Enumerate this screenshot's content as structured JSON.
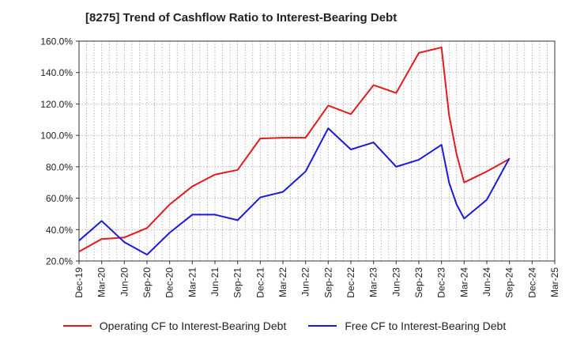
{
  "title": "[8275]  Trend of Cashflow Ratio to Interest-Bearing Debt",
  "chart_data": {
    "type": "line",
    "x": [
      "Dec-19",
      "Mar-20",
      "Jun-20",
      "Sep-20",
      "Dec-20",
      "Mar-21",
      "Jun-21",
      "Sep-21",
      "Dec-21",
      "Mar-22",
      "Jun-22",
      "Sep-22",
      "Dec-22",
      "Mar-23",
      "Jun-23",
      "Sep-23",
      "Dec-23",
      "Mar-24",
      "Jun-24",
      "Sep-24",
      "Dec-24",
      "Mar-25"
    ],
    "ylim": [
      20,
      160
    ],
    "yticks": [
      "20.0%",
      "40.0%",
      "60.0%",
      "80.0%",
      "100.0%",
      "120.0%",
      "140.0%",
      "160.0%"
    ],
    "grid": true,
    "legend_position": "bottom",
    "series": [
      {
        "name": "Operating CF to Interest-Bearing Debt",
        "color": "#e41a1c",
        "points": [
          [
            "Dec-19",
            26
          ],
          [
            "Mar-20",
            34
          ],
          [
            "Jun-20",
            35
          ],
          [
            "Sep-20",
            41
          ],
          [
            "Dec-20",
            56
          ],
          [
            "Mar-21",
            67.5
          ],
          [
            "Jun-21",
            75
          ],
          [
            "Sep-21",
            78
          ],
          [
            "Dec-21",
            98
          ],
          [
            "Mar-22",
            98.5
          ],
          [
            "Jun-22",
            98.5
          ],
          [
            "Sep-22",
            119
          ],
          [
            "Dec-22",
            113.5
          ],
          [
            "Mar-23",
            132
          ],
          [
            "Jun-23",
            127
          ],
          [
            "Sep-23",
            152.5
          ],
          [
            "Dec-23",
            156
          ],
          [
            "Jan-24",
            113
          ],
          [
            "Feb-24",
            88
          ],
          [
            "Mar-24",
            70
          ],
          [
            "Jun-24",
            77
          ],
          [
            "Sep-24",
            85
          ]
        ]
      },
      {
        "name": "Free CF to Interest-Bearing Debt",
        "color": "#1a1adb",
        "points": [
          [
            "Dec-19",
            33
          ],
          [
            "Mar-20",
            45.5
          ],
          [
            "Jun-20",
            32
          ],
          [
            "Sep-20",
            24
          ],
          [
            "Dec-20",
            38
          ],
          [
            "Mar-21",
            49.5
          ],
          [
            "Jun-21",
            49.5
          ],
          [
            "Sep-21",
            46
          ],
          [
            "Dec-21",
            60.5
          ],
          [
            "Mar-22",
            64
          ],
          [
            "Jun-22",
            77
          ],
          [
            "Sep-22",
            104.5
          ],
          [
            "Dec-22",
            91
          ],
          [
            "Mar-23",
            95.5
          ],
          [
            "Jun-23",
            80
          ],
          [
            "Sep-23",
            84.5
          ],
          [
            "Dec-23",
            94
          ],
          [
            "Jan-24",
            70
          ],
          [
            "Feb-24",
            56
          ],
          [
            "Mar-24",
            47
          ],
          [
            "Jun-24",
            59
          ],
          [
            "Sep-24",
            85.5
          ]
        ]
      }
    ]
  }
}
